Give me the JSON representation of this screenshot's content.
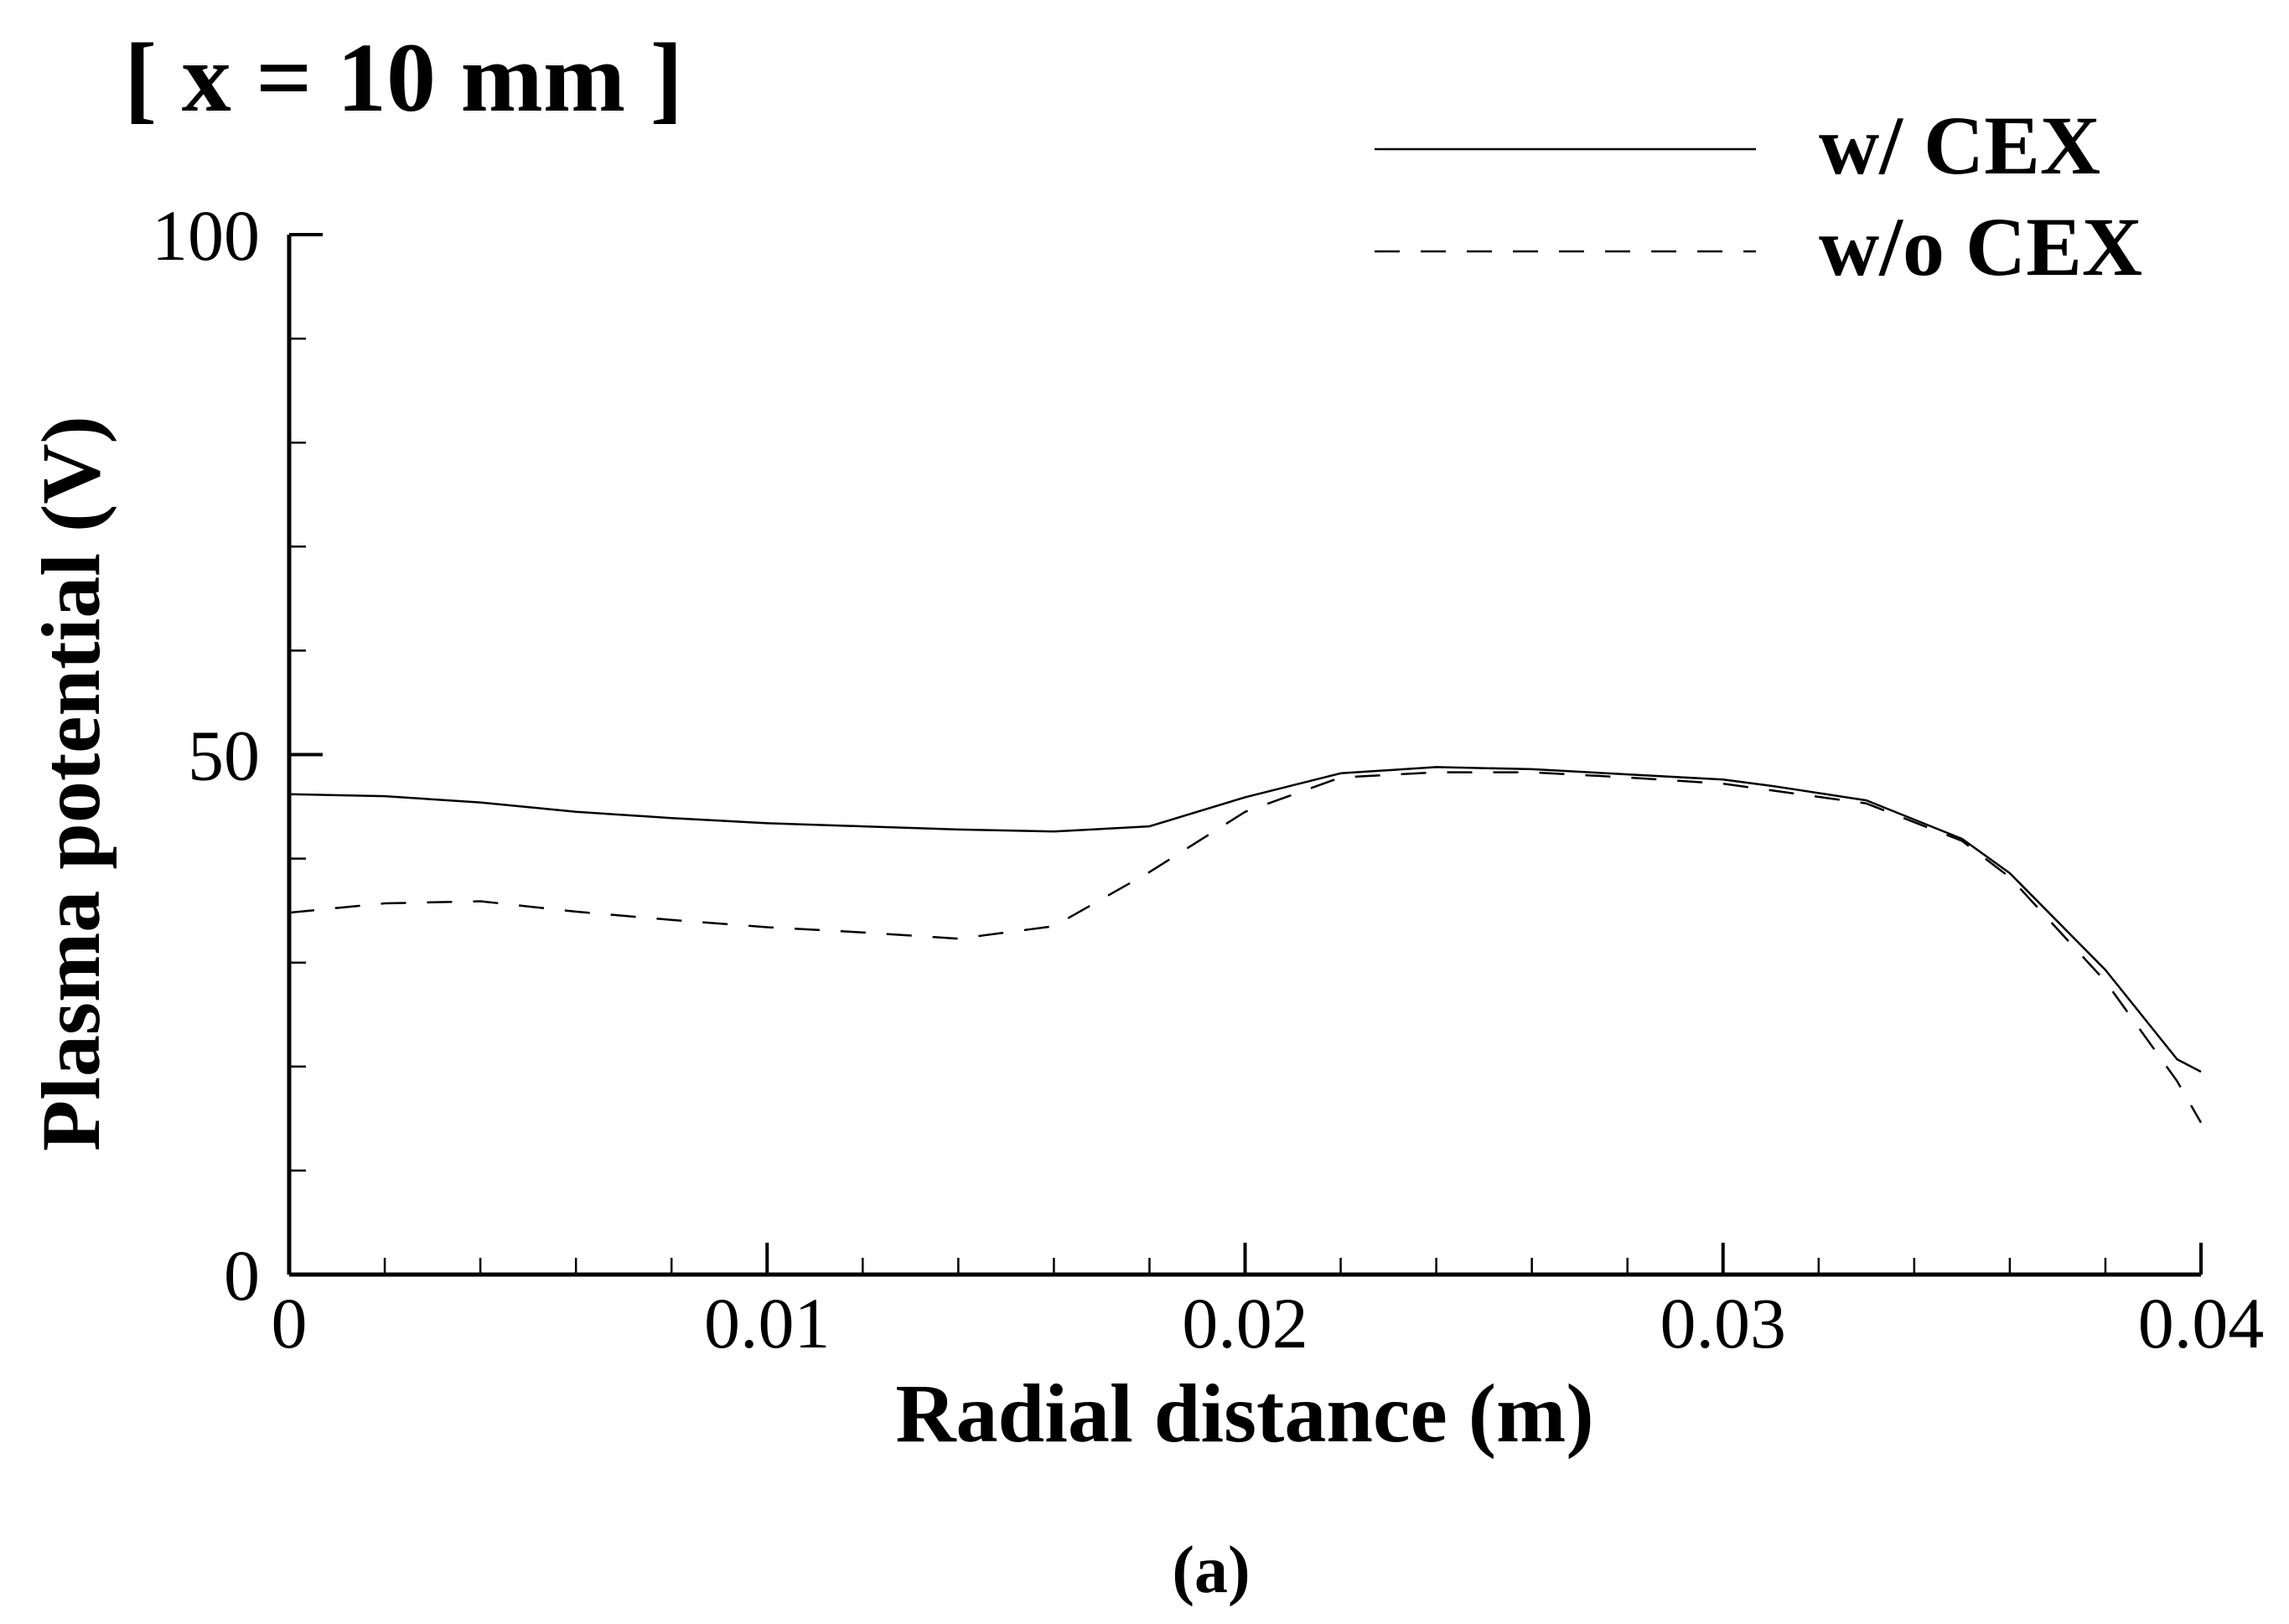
{
  "chart_data": {
    "type": "line",
    "title": "[ x = 10 mm ]",
    "xlabel": "Radial distance (m)",
    "ylabel": "Plasma potential (V)",
    "caption": "(a)",
    "xlim": [
      0,
      0.04
    ],
    "ylim": [
      0,
      100
    ],
    "x_ticks": [
      0,
      0.01,
      0.02,
      0.03,
      0.04
    ],
    "x_tick_labels": [
      "0",
      "0.01",
      "0.02",
      "0.03",
      "0.04"
    ],
    "x_minor_step": 0.002,
    "y_ticks": [
      0,
      50,
      100
    ],
    "y_tick_labels": [
      "0",
      "50",
      "100"
    ],
    "y_minor_step": 10,
    "grid": false,
    "legend_position": "top-right",
    "series": [
      {
        "name": "w/ CEX",
        "style": "solid",
        "points": [
          [
            0,
            46.2
          ],
          [
            0.002,
            46.0
          ],
          [
            0.004,
            45.4
          ],
          [
            0.006,
            44.5
          ],
          [
            0.008,
            43.9
          ],
          [
            0.01,
            43.4
          ],
          [
            0.012,
            43.1
          ],
          [
            0.014,
            42.8
          ],
          [
            0.016,
            42.6
          ],
          [
            0.018,
            43.1
          ],
          [
            0.02,
            45.9
          ],
          [
            0.022,
            48.2
          ],
          [
            0.024,
            48.8
          ],
          [
            0.026,
            48.6
          ],
          [
            0.028,
            48.1
          ],
          [
            0.03,
            47.6
          ],
          [
            0.031,
            47.0
          ],
          [
            0.033,
            45.6
          ],
          [
            0.035,
            41.9
          ],
          [
            0.036,
            38.6
          ],
          [
            0.038,
            29.3
          ],
          [
            0.0395,
            20.7
          ],
          [
            0.04,
            19.5
          ]
        ]
      },
      {
        "name": "w/o CEX",
        "style": "dashed",
        "points": [
          [
            0,
            34.8
          ],
          [
            0.002,
            35.7
          ],
          [
            0.004,
            35.9
          ],
          [
            0.006,
            34.9
          ],
          [
            0.008,
            34.1
          ],
          [
            0.01,
            33.4
          ],
          [
            0.012,
            32.9
          ],
          [
            0.014,
            32.3
          ],
          [
            0.016,
            33.5
          ],
          [
            0.018,
            38.7
          ],
          [
            0.02,
            44.5
          ],
          [
            0.022,
            47.8
          ],
          [
            0.024,
            48.3
          ],
          [
            0.026,
            48.3
          ],
          [
            0.028,
            47.8
          ],
          [
            0.03,
            47.2
          ],
          [
            0.033,
            45.3
          ],
          [
            0.035,
            41.7
          ],
          [
            0.036,
            38.2
          ],
          [
            0.038,
            28.2
          ],
          [
            0.0395,
            18.6
          ],
          [
            0.04,
            14.6
          ]
        ]
      }
    ]
  }
}
